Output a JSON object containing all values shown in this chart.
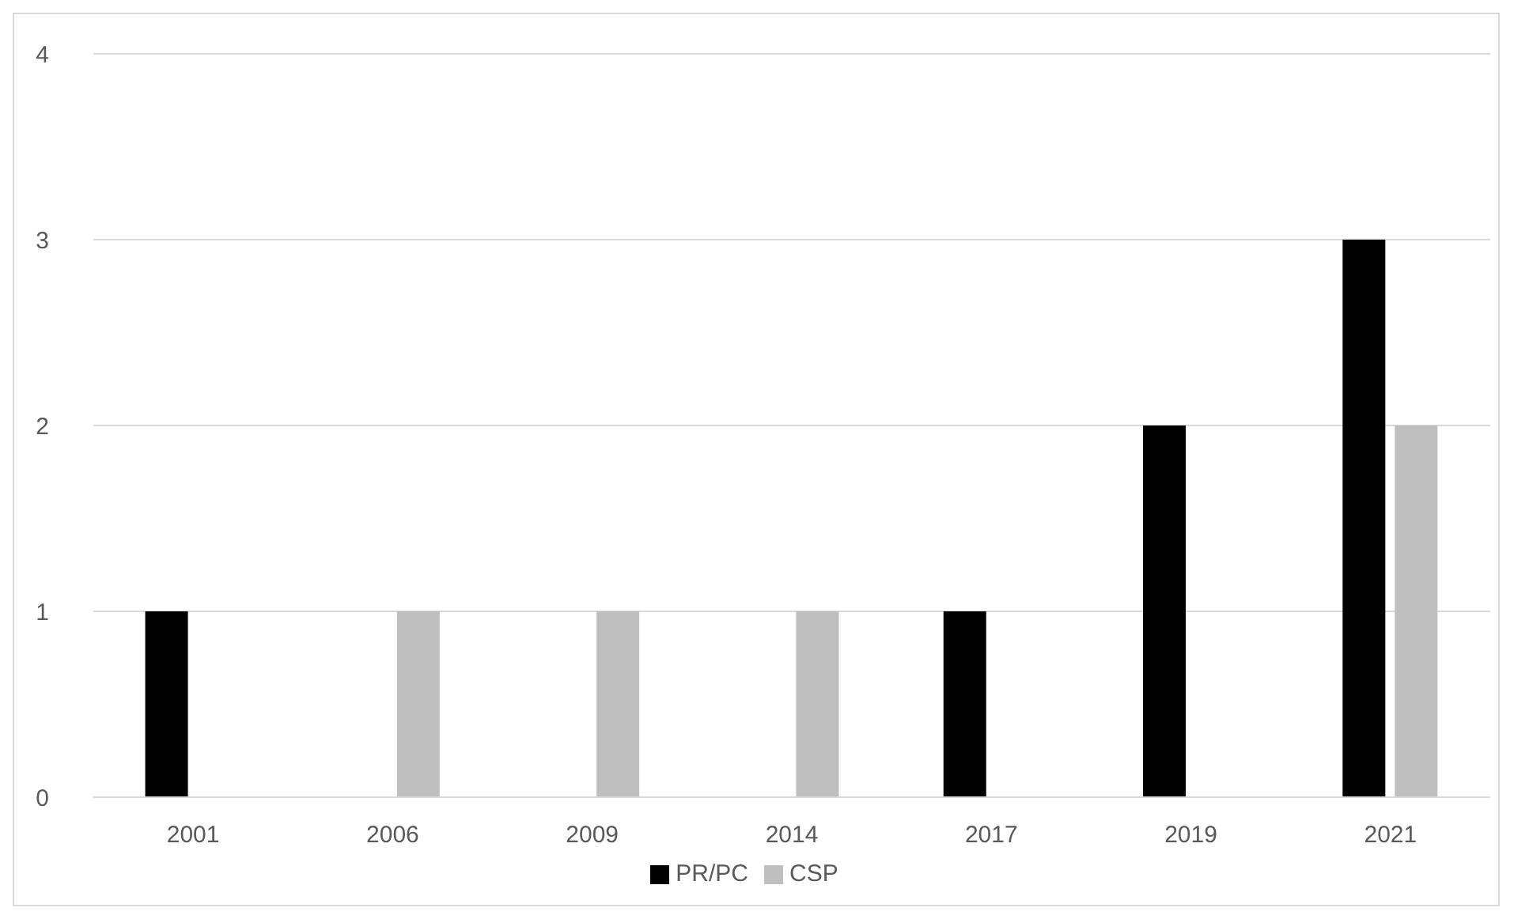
{
  "chart_data": {
    "type": "bar",
    "categories": [
      "2001",
      "2006",
      "2009",
      "2014",
      "2017",
      "2019",
      "2021"
    ],
    "series": [
      {
        "name": "PR/PC",
        "color": "#000000",
        "values": [
          1,
          0,
          0,
          0,
          1,
          2,
          3
        ]
      },
      {
        "name": "CSP",
        "color": "#bfbfbf",
        "values": [
          0,
          1,
          1,
          1,
          0,
          0,
          2
        ]
      }
    ],
    "ylim": [
      0,
      4
    ],
    "yticks": [
      0,
      1,
      2,
      3,
      4
    ],
    "grid": "y",
    "legend": "bottom"
  }
}
